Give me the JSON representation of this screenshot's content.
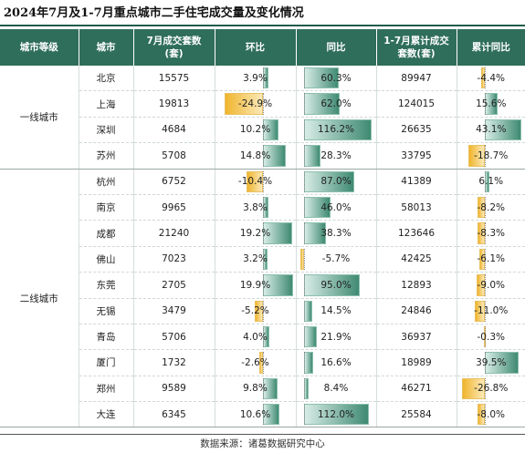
{
  "title": "2024年7月及1-7月重点城市二手住宅成交量及变化情况",
  "source": "数据来源：诸葛数据研究中心",
  "columns": [
    "城市等级",
    "城市",
    "7月成交套数\n(套)",
    "环比",
    "同比",
    "1-7月累计成交\n套数(套)",
    "累计同比"
  ],
  "tiers": [
    {
      "label": "一线城市",
      "rows": 4
    },
    {
      "label": "二线城市",
      "rows": 10
    }
  ],
  "colors": {
    "header": "#2f6e5b",
    "positive_bar": "#3f8a72",
    "negative_bar": "#f0b52e"
  },
  "chart_data": {
    "type": "table",
    "rows": [
      {
        "city": "北京",
        "july": "15575",
        "mom": 3.9,
        "mom_text": "3.9%",
        "yoy": 60.3,
        "yoy_text": "60.3%",
        "cum": "89947",
        "cum_yoy": -4.4,
        "cum_yoy_text": "-4.4%"
      },
      {
        "city": "上海",
        "july": "19813",
        "mom": -24.9,
        "mom_text": "-24.9%",
        "yoy": 62.0,
        "yoy_text": "62.0%",
        "cum": "124015",
        "cum_yoy": 15.6,
        "cum_yoy_text": "15.6%"
      },
      {
        "city": "深圳",
        "july": "4684",
        "mom": 10.2,
        "mom_text": "10.2%",
        "yoy": 116.2,
        "yoy_text": "116.2%",
        "cum": "26635",
        "cum_yoy": 43.1,
        "cum_yoy_text": "43.1%"
      },
      {
        "city": "苏州",
        "july": "5708",
        "mom": 14.8,
        "mom_text": "14.8%",
        "yoy": 28.3,
        "yoy_text": "28.3%",
        "cum": "33795",
        "cum_yoy": -18.7,
        "cum_yoy_text": "-18.7%"
      },
      {
        "city": "杭州",
        "july": "6752",
        "mom": -10.4,
        "mom_text": "-10.4%",
        "yoy": 87.0,
        "yoy_text": "87.0%",
        "cum": "41389",
        "cum_yoy": 6.1,
        "cum_yoy_text": "6.1%"
      },
      {
        "city": "南京",
        "july": "9965",
        "mom": 3.8,
        "mom_text": "3.8%",
        "yoy": 46.0,
        "yoy_text": "46.0%",
        "cum": "58013",
        "cum_yoy": -8.2,
        "cum_yoy_text": "-8.2%"
      },
      {
        "city": "成都",
        "july": "21240",
        "mom": 19.2,
        "mom_text": "19.2%",
        "yoy": 38.3,
        "yoy_text": "38.3%",
        "cum": "123646",
        "cum_yoy": -8.3,
        "cum_yoy_text": "-8.3%"
      },
      {
        "city": "佛山",
        "july": "7023",
        "mom": 3.2,
        "mom_text": "3.2%",
        "yoy": -5.7,
        "yoy_text": "-5.7%",
        "cum": "42425",
        "cum_yoy": -6.1,
        "cum_yoy_text": "-6.1%"
      },
      {
        "city": "东莞",
        "july": "2705",
        "mom": 19.9,
        "mom_text": "19.9%",
        "yoy": 95.0,
        "yoy_text": "95.0%",
        "cum": "12893",
        "cum_yoy": -9.0,
        "cum_yoy_text": "-9.0%"
      },
      {
        "city": "无锡",
        "july": "3479",
        "mom": -5.2,
        "mom_text": "-5.2%",
        "yoy": 14.5,
        "yoy_text": "14.5%",
        "cum": "24846",
        "cum_yoy": -11.0,
        "cum_yoy_text": "-11.0%"
      },
      {
        "city": "青岛",
        "july": "5706",
        "mom": 4.0,
        "mom_text": "4.0%",
        "yoy": 21.9,
        "yoy_text": "21.9%",
        "cum": "36937",
        "cum_yoy": -0.3,
        "cum_yoy_text": "-0.3%"
      },
      {
        "city": "厦门",
        "july": "1732",
        "mom": -2.6,
        "mom_text": "-2.6%",
        "yoy": 16.6,
        "yoy_text": "16.6%",
        "cum": "18989",
        "cum_yoy": 39.5,
        "cum_yoy_text": "39.5%"
      },
      {
        "city": "郑州",
        "july": "9589",
        "mom": 9.8,
        "mom_text": "9.8%",
        "yoy": 8.4,
        "yoy_text": "8.4%",
        "cum": "46271",
        "cum_yoy": -26.8,
        "cum_yoy_text": "-26.8%"
      },
      {
        "city": "大连",
        "july": "6345",
        "mom": 10.6,
        "mom_text": "10.6%",
        "yoy": 112.0,
        "yoy_text": "112.0%",
        "cum": "25584",
        "cum_yoy": -8.0,
        "cum_yoy_text": "-8.0%"
      }
    ]
  }
}
